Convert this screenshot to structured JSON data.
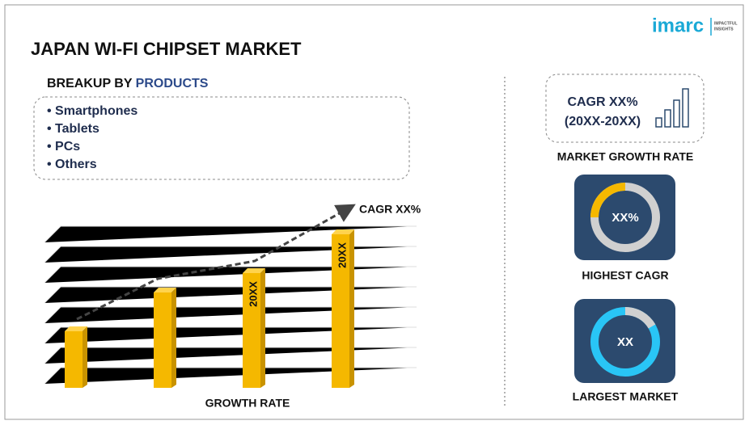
{
  "logo": {
    "brand": "imarc",
    "tagline_1": "IMPACTFUL",
    "tagline_2": "INSIGHTS"
  },
  "header": {
    "title": "JAPAN WI-FI CHIPSET MARKET"
  },
  "breakup": {
    "heading": "BREAKUP BY",
    "heading_highlight": "PRODUCTS",
    "items": [
      "• Smartphones",
      "• Tablets",
      "• PCs",
      "• Others"
    ]
  },
  "growth_chart": {
    "annotation": "CAGR XX%",
    "bar_labels": [
      "20XX",
      "20XX"
    ],
    "caption": "GROWTH RATE"
  },
  "panels": {
    "market_growth": {
      "line_1": "CAGR XX%",
      "line_2": "(20XX-20XX)",
      "caption": "MARKET GROWTH RATE"
    },
    "highest_cagr": {
      "value": "XX%",
      "caption": "HIGHEST CAGR"
    },
    "largest_market": {
      "value": "XX",
      "caption": "LARGEST MARKET"
    }
  }
}
